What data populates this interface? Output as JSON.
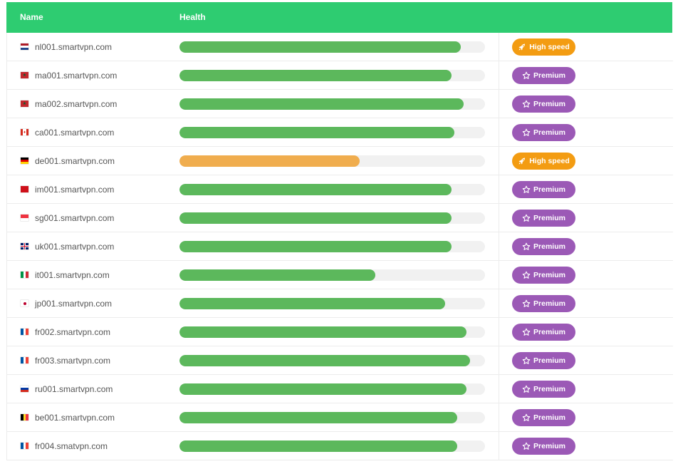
{
  "header": {
    "name_label": "Name",
    "health_label": "Health"
  },
  "colors": {
    "header": "#2ecc71",
    "good": "#5cb85c",
    "warn": "#f0ad4e",
    "premium": "#9b59b6",
    "speed": "#f39c12"
  },
  "servers": [
    {
      "name": "nl001.smartvpn.com",
      "flag": "nl",
      "health": 0.92,
      "status": "good",
      "badge": "High speed",
      "badge_type": "speed"
    },
    {
      "name": "ma001.smartvpn.com",
      "flag": "ma",
      "health": 0.89,
      "status": "good",
      "badge": "Premium",
      "badge_type": "premium"
    },
    {
      "name": "ma002.smartvpn.com",
      "flag": "ma",
      "health": 0.93,
      "status": "good",
      "badge": "Premium",
      "badge_type": "premium"
    },
    {
      "name": "ca001.smartvpn.com",
      "flag": "ca",
      "health": 0.9,
      "status": "good",
      "badge": "Premium",
      "badge_type": "premium"
    },
    {
      "name": "de001.smartvpn.com",
      "flag": "de",
      "health": 0.59,
      "status": "warn",
      "badge": "High speed",
      "badge_type": "speed"
    },
    {
      "name": "im001.smartvpn.com",
      "flag": "im",
      "health": 0.89,
      "status": "good",
      "badge": "Premium",
      "badge_type": "premium"
    },
    {
      "name": "sg001.smartvpn.com",
      "flag": "sg",
      "health": 0.89,
      "status": "good",
      "badge": "Premium",
      "badge_type": "premium"
    },
    {
      "name": "uk001.smartvpn.com",
      "flag": "uk",
      "health": 0.89,
      "status": "good",
      "badge": "Premium",
      "badge_type": "premium"
    },
    {
      "name": "it001.smartvpn.com",
      "flag": "it",
      "health": 0.64,
      "status": "good",
      "badge": "Premium",
      "badge_type": "premium"
    },
    {
      "name": "jp001.smartvpn.com",
      "flag": "jp",
      "health": 0.87,
      "status": "good",
      "badge": "Premium",
      "badge_type": "premium"
    },
    {
      "name": "fr002.smartvpn.com",
      "flag": "fr",
      "health": 0.94,
      "status": "good",
      "badge": "Premium",
      "badge_type": "premium"
    },
    {
      "name": "fr003.smartvpn.com",
      "flag": "fr",
      "health": 0.95,
      "status": "good",
      "badge": "Premium",
      "badge_type": "premium"
    },
    {
      "name": "ru001.smartvpn.com",
      "flag": "ru",
      "health": 0.94,
      "status": "good",
      "badge": "Premium",
      "badge_type": "premium"
    },
    {
      "name": "be001.smartvpn.com",
      "flag": "be",
      "health": 0.91,
      "status": "good",
      "badge": "Premium",
      "badge_type": "premium"
    },
    {
      "name": "fr004.smatvpn.com",
      "flag": "fr",
      "health": 0.91,
      "status": "good",
      "badge": "Premium",
      "badge_type": "premium"
    }
  ]
}
